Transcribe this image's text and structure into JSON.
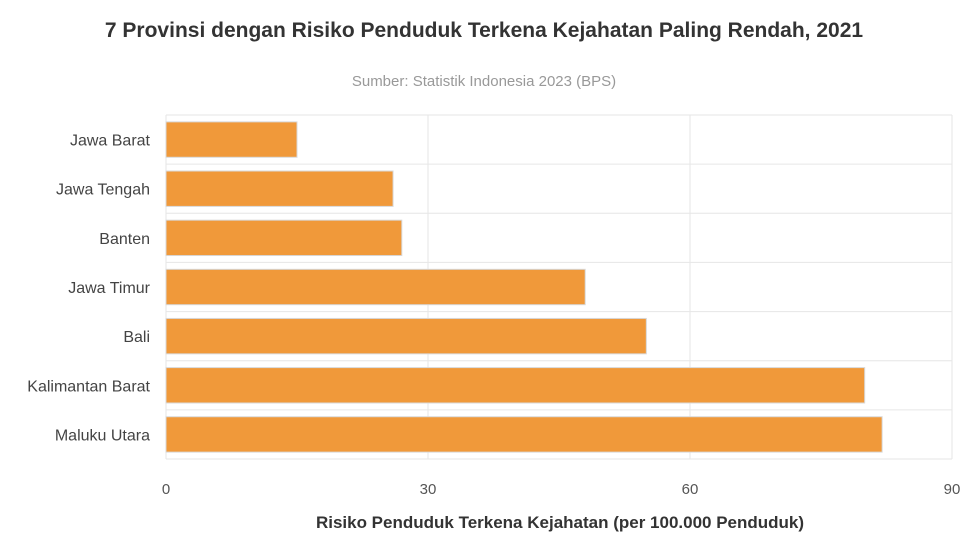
{
  "chart_data": {
    "type": "bar",
    "orientation": "horizontal",
    "title": "7 Provinsi dengan Risiko Penduduk Terkena Kejahatan Paling Rendah, 2021",
    "subtitle": "Sumber: Statistik Indonesia 2023 (BPS)",
    "xlabel": "Risiko Penduduk Terkena Kejahatan (per 100.000 Penduduk)",
    "ylabel": "",
    "categories": [
      "Jawa Barat",
      "Jawa Tengah",
      "Banten",
      "Jawa Timur",
      "Bali",
      "Kalimantan Barat",
      "Maluku Utara"
    ],
    "values": [
      15,
      26,
      27,
      48,
      55,
      80,
      82
    ],
    "xlim": [
      0,
      90
    ],
    "xticks": [
      0,
      30,
      60,
      90
    ],
    "grid": true,
    "legend": "none",
    "bar_color": "#f0993a"
  }
}
